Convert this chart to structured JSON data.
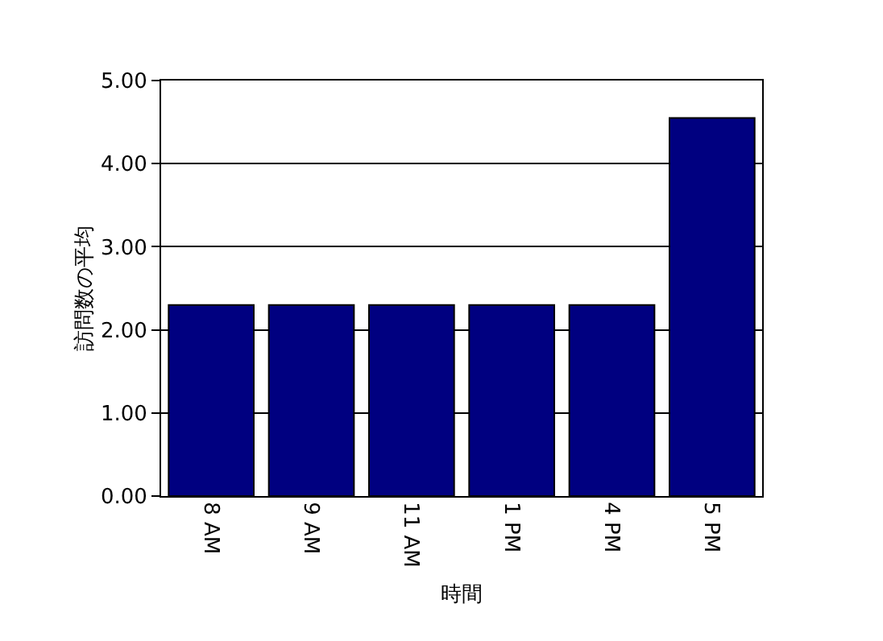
{
  "chart_data": {
    "type": "bar",
    "xlabel": "時間",
    "ylabel": "訪問数の平均",
    "categories": [
      "8 AM",
      "9 AM",
      "11 AM",
      "1 PM",
      "4 PM",
      "5 PM"
    ],
    "values": [
      2.3,
      2.3,
      2.3,
      2.3,
      2.3,
      4.55
    ],
    "color": "#000080",
    "ylim": [
      0,
      5
    ],
    "yticks": [
      {
        "value": 0,
        "label": "0.00"
      },
      {
        "value": 1,
        "label": "1.00"
      },
      {
        "value": 2,
        "label": "2.00"
      },
      {
        "value": 3,
        "label": "3.00"
      },
      {
        "value": 4,
        "label": "4.00"
      },
      {
        "value": 5,
        "label": "5.00"
      }
    ],
    "grid": "y"
  }
}
